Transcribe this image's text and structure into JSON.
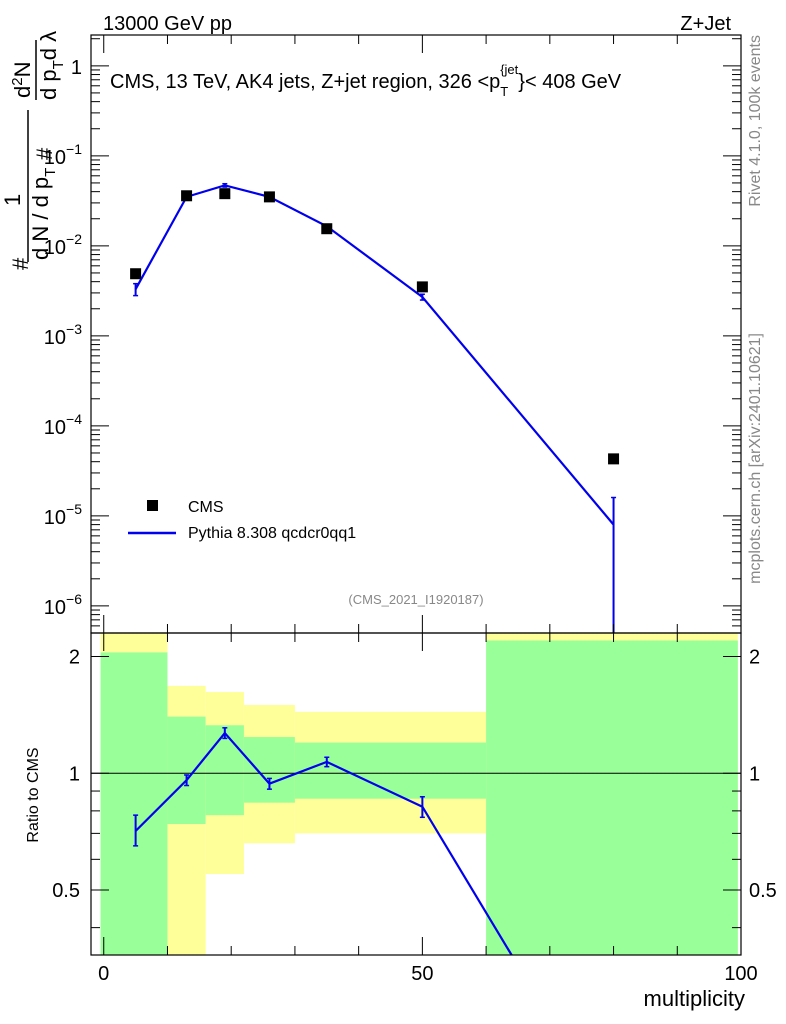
{
  "header": {
    "left": "13000 GeV pp",
    "right": "Z+Jet"
  },
  "side_text": {
    "top": "Rivet 4.1.0,  100k events",
    "bottom": "mcplots.cern.ch [arXiv:2401.10621]"
  },
  "ylabel_parts": {
    "num_left": "1",
    "den_left": "d N / d p",
    "den_left_sub": "T",
    "num_right": "d",
    "num_right_sup": "2",
    "num_right_tail": "N",
    "den_right": "d p",
    "den_right_sub": "T",
    "den_right_tail": "d λ",
    "hash_left": "#",
    "hash_right": "#"
  },
  "colors": {
    "data": "#000000",
    "mc": "#0000ee",
    "band_inner": "#99ff99",
    "band_outer": "#ffff99"
  },
  "chart_data": [
    {
      "type": "line",
      "title": "CMS, 13 TeV, AK4 jets, Z+jet region, 326 <p",
      "title_sub": "T",
      "title_sup": "{jet",
      "title_tail": "}< 408 GeV",
      "watermark": "(CMS_2021_I1920187)",
      "yscale": "log",
      "xlim": [
        -2,
        100
      ],
      "ylim": [
        5e-07,
        2.2
      ],
      "yticks": [
        {
          "base": "1",
          "exp": "",
          "v": 1
        },
        {
          "base": "10",
          "exp": "−1",
          "v": 0.1
        },
        {
          "base": "10",
          "exp": "−2",
          "v": 0.01
        },
        {
          "base": "10",
          "exp": "−3",
          "v": 0.001
        },
        {
          "base": "10",
          "exp": "−4",
          "v": 0.0001
        },
        {
          "base": "10",
          "exp": "−5",
          "v": 1e-05
        },
        {
          "base": "10",
          "exp": "−6",
          "v": 1e-06
        }
      ],
      "legend": [
        {
          "label": "CMS"
        },
        {
          "label": "Pythia 8.308 qcdcr0qq1"
        }
      ],
      "legend_position": "bottom-left",
      "series": [
        {
          "name": "CMS",
          "x": [
            5,
            13,
            19,
            26,
            35,
            50,
            80
          ],
          "y": [
            0.0049,
            0.036,
            0.038,
            0.035,
            0.0155,
            0.0035,
            4.3e-05
          ]
        },
        {
          "name": "Pythia 8.308 qcdcr0qq1",
          "x": [
            5,
            13,
            19,
            26,
            35,
            50,
            80
          ],
          "y": [
            0.0033,
            0.035,
            0.047,
            0.035,
            0.0165,
            0.0027,
            8e-06
          ],
          "err_lo": [
            0.0028,
            0.033,
            0.045,
            0.034,
            0.016,
            0.0025,
            4e-07
          ],
          "err_hi": [
            0.0038,
            0.037,
            0.049,
            0.036,
            0.017,
            0.0029,
            1.6e-05
          ]
        }
      ]
    },
    {
      "type": "line",
      "ylabel": "Ratio to CMS",
      "xlabel": "multiplicity",
      "xlim": [
        -2,
        100
      ],
      "ylim": [
        0.34,
        2.3
      ],
      "xticks": [
        0,
        50,
        100
      ],
      "yticks": [
        0.5,
        1,
        2
      ],
      "yticklabels": [
        "0.5",
        "1",
        "2"
      ],
      "bins": [
        {
          "x0": -0.5,
          "x1": 10,
          "inner": [
            0.34,
            2.05
          ],
          "outer": [
            0.34,
            2.3
          ]
        },
        {
          "x0": 10,
          "x1": 16,
          "inner": [
            0.74,
            1.4
          ],
          "outer": [
            0.34,
            1.68
          ]
        },
        {
          "x0": 16,
          "x1": 22,
          "inner": [
            0.78,
            1.33
          ],
          "outer": [
            0.55,
            1.62
          ]
        },
        {
          "x0": 22,
          "x1": 30,
          "inner": [
            0.84,
            1.24
          ],
          "outer": [
            0.66,
            1.5
          ]
        },
        {
          "x0": 30,
          "x1": 60,
          "inner": [
            0.86,
            1.2
          ],
          "outer": [
            0.7,
            1.44
          ]
        },
        {
          "x0": 60,
          "x1": 99.5,
          "inner": [
            0.34,
            2.2
          ],
          "outer": [
            0.34,
            2.3
          ]
        }
      ],
      "series": [
        {
          "name": "Pythia 8.308 qcdcr0qq1",
          "x": [
            5,
            13,
            19,
            26,
            35,
            50,
            64
          ],
          "y": [
            0.71,
            0.96,
            1.27,
            0.94,
            1.07,
            0.82,
            0.34
          ],
          "err_lo": [
            0.65,
            0.93,
            1.23,
            0.91,
            1.04,
            0.77,
            null
          ],
          "err_hi": [
            0.78,
            0.99,
            1.31,
            0.97,
            1.1,
            0.87,
            null
          ]
        }
      ]
    }
  ]
}
